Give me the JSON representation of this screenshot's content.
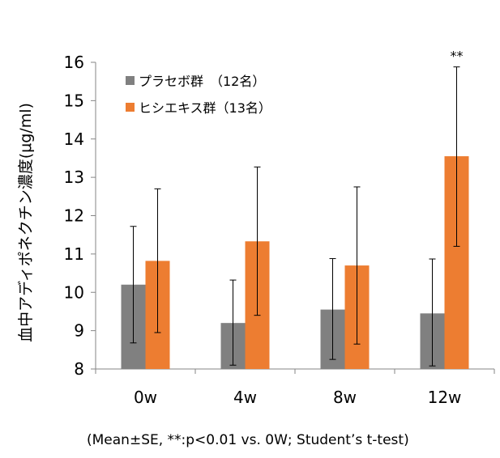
{
  "chart_data": {
    "type": "bar",
    "categories": [
      "0w",
      "4w",
      "8w",
      "12w"
    ],
    "series": [
      {
        "name": "プラセボ群　（12名）",
        "color": "#808080",
        "values": [
          10.2,
          9.2,
          9.55,
          9.45
        ],
        "error_low": [
          8.68,
          8.1,
          8.25,
          8.08
        ],
        "error_high": [
          11.72,
          10.32,
          10.88,
          10.87
        ]
      },
      {
        "name": "ヒシエキス群（13名）",
        "color": "#ED7D31",
        "values": [
          10.82,
          11.33,
          10.7,
          13.55
        ],
        "error_low": [
          8.95,
          9.4,
          8.65,
          11.2
        ],
        "error_high": [
          12.7,
          13.27,
          12.75,
          15.88
        ]
      }
    ],
    "ylabel": "血中アディポネクチン濃度(μg/ml)",
    "xlabel": "",
    "ylim": [
      8,
      16
    ],
    "yticks": [
      "8",
      "9",
      "10",
      "11",
      "12",
      "13",
      "14",
      "15",
      "16"
    ],
    "grid": false,
    "legend_position": "top-left",
    "annotations": [
      {
        "category": "12w",
        "text": "**"
      }
    ],
    "note": "(Mean±SE, **:p<0.01 vs. 0W; Student’s t-test)"
  }
}
